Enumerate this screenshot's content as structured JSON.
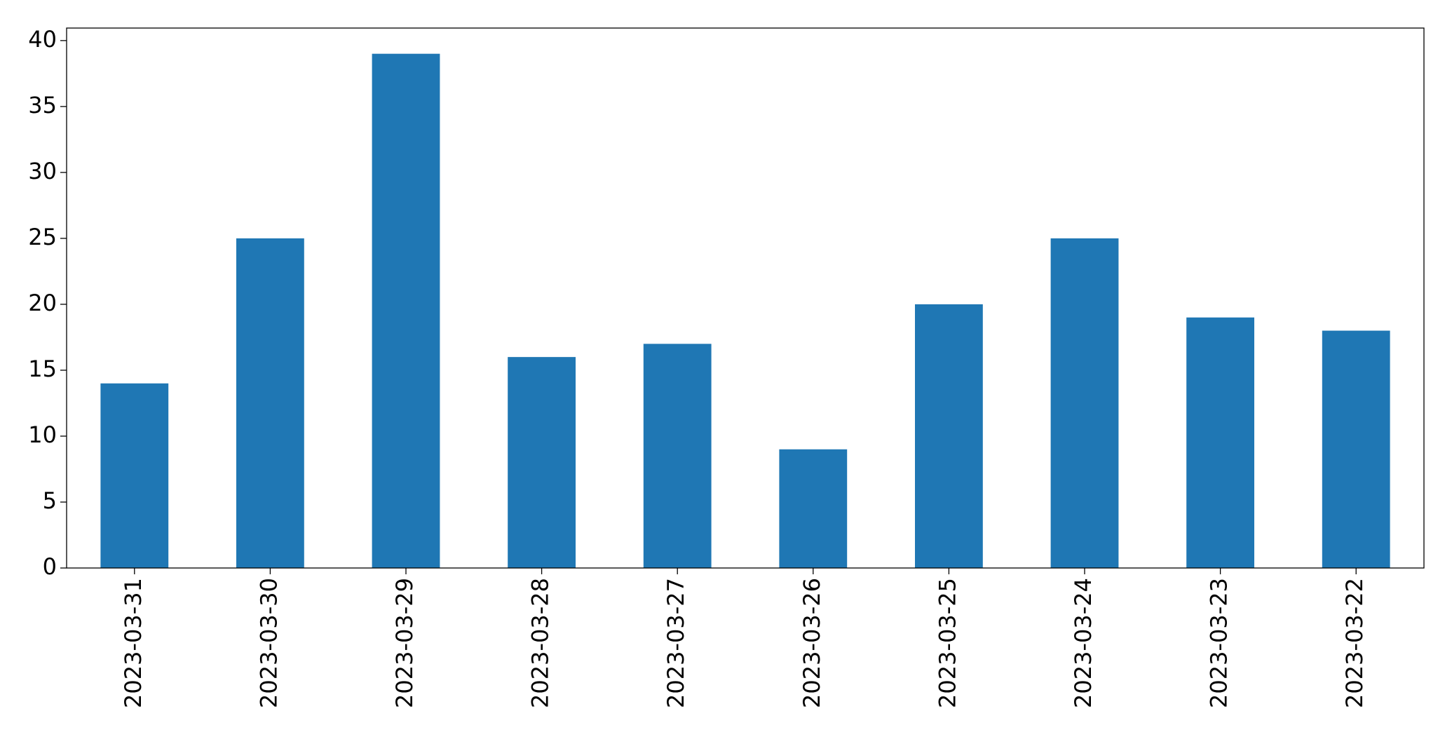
{
  "chart_data": {
    "type": "bar",
    "categories": [
      "2023-03-31",
      "2023-03-30",
      "2023-03-29",
      "2023-03-28",
      "2023-03-27",
      "2023-03-26",
      "2023-03-25",
      "2023-03-24",
      "2023-03-23",
      "2023-03-22"
    ],
    "values": [
      14,
      25,
      39,
      16,
      17,
      9,
      20,
      25,
      19,
      18
    ],
    "color": "#1f77b4",
    "ylim": [
      0,
      40.95
    ],
    "yticks": [
      0,
      5,
      10,
      15,
      20,
      25,
      30,
      35,
      40
    ],
    "grid": false
  }
}
